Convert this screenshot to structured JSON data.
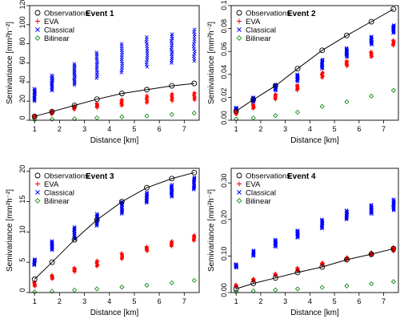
{
  "chart_data": [
    {
      "type": "scatter",
      "title": "Event 1",
      "xlabel": "Distance [km]",
      "ylabel": "Semivariance [mm²h⁻²]",
      "xlim": [
        0.8,
        7.6
      ],
      "ylim": [
        0,
        120
      ],
      "xticks": [
        "1",
        "2",
        "3",
        "4",
        "5",
        "6",
        "7"
      ],
      "yticks": [
        "0",
        "20",
        "40",
        "60",
        "80",
        "100",
        "120"
      ],
      "legend_position": "top-left",
      "x": [
        1.0,
        1.7,
        2.6,
        3.5,
        4.5,
        5.5,
        6.5,
        7.4
      ],
      "series": [
        {
          "name": "Observations",
          "marker": "circle-line",
          "color": "#000000",
          "values": [
            4,
            9,
            15.5,
            22,
            28,
            32,
            36,
            38.5
          ]
        },
        {
          "name": "EVA",
          "marker": "plus",
          "color": "#ff0000",
          "range_low": [
            2,
            6,
            11,
            13,
            15,
            18,
            20,
            21
          ],
          "range_high": [
            5,
            10,
            15,
            18,
            22,
            26,
            28,
            29
          ]
        },
        {
          "name": "Classical",
          "marker": "x",
          "color": "#0000ff",
          "range_low": [
            20,
            31,
            37,
            44,
            50,
            56,
            60,
            62
          ],
          "range_high": [
            33,
            47,
            59,
            71,
            80,
            87,
            90,
            95
          ]
        },
        {
          "name": "Bilinear",
          "marker": "diamond",
          "color": "#008000",
          "values": [
            0.5,
            1,
            1.5,
            2.5,
            3.5,
            4.5,
            6,
            7.5
          ]
        }
      ]
    },
    {
      "type": "scatter",
      "title": "Event 2",
      "xlabel": "Distance [km]",
      "ylabel": "Semivariance [mm²h⁻²]",
      "xlim": [
        0.8,
        7.6
      ],
      "ylim": [
        0,
        0.1
      ],
      "xticks": [
        "1",
        "2",
        "3",
        "4",
        "5",
        "6",
        "7"
      ],
      "yticks": [
        "0.00",
        "0.02",
        "0.04",
        "0.06",
        "0.08",
        "0.10"
      ],
      "legend_position": "top-left",
      "x": [
        1.0,
        1.7,
        2.6,
        3.5,
        4.5,
        5.5,
        6.5,
        7.4
      ],
      "series": [
        {
          "name": "Observations",
          "marker": "circle-line",
          "color": "#000000",
          "values": [
            0.008,
            0.018,
            0.03,
            0.045,
            0.061,
            0.074,
            0.086,
            0.097
          ]
        },
        {
          "name": "EVA",
          "marker": "plus",
          "color": "#ff0000",
          "range_low": [
            0.005,
            0.01,
            0.018,
            0.026,
            0.037,
            0.047,
            0.055,
            0.065
          ],
          "range_high": [
            0.008,
            0.014,
            0.023,
            0.031,
            0.042,
            0.052,
            0.06,
            0.07
          ]
        },
        {
          "name": "Classical",
          "marker": "x",
          "color": "#0000ff",
          "range_low": [
            0.008,
            0.016,
            0.026,
            0.034,
            0.045,
            0.055,
            0.066,
            0.076
          ],
          "range_high": [
            0.011,
            0.02,
            0.031,
            0.04,
            0.053,
            0.063,
            0.073,
            0.083
          ]
        },
        {
          "name": "Bilinear",
          "marker": "diamond",
          "color": "#008000",
          "values": [
            0.001,
            0.002,
            0.004,
            0.007,
            0.012,
            0.016,
            0.021,
            0.026
          ]
        }
      ]
    },
    {
      "type": "scatter",
      "title": "Event 3",
      "xlabel": "Distance [km]",
      "ylabel": "Semivariance [mm²h⁻²]",
      "xlim": [
        0.8,
        7.6
      ],
      "ylim": [
        0,
        20.5
      ],
      "xticks": [
        "1",
        "2",
        "3",
        "4",
        "5",
        "6",
        "7"
      ],
      "yticks": [
        "0",
        "5",
        "10",
        "15",
        "20"
      ],
      "legend_position": "top-left",
      "x": [
        1.0,
        1.7,
        2.6,
        3.5,
        4.5,
        5.5,
        6.5,
        7.4
      ],
      "series": [
        {
          "name": "Observations",
          "marker": "circle-line",
          "color": "#000000",
          "values": [
            2.2,
            5.0,
            8.7,
            12.0,
            15.0,
            17.3,
            18.8,
            19.8
          ]
        },
        {
          "name": "EVA",
          "marker": "plus",
          "color": "#ff0000",
          "range_low": [
            1.0,
            2.2,
            3.4,
            4.3,
            5.5,
            6.8,
            7.6,
            8.5
          ],
          "range_high": [
            1.8,
            2.9,
            4.1,
            5.3,
            6.5,
            7.6,
            8.5,
            9.5
          ]
        },
        {
          "name": "Classical",
          "marker": "x",
          "color": "#0000ff",
          "range_low": [
            4.5,
            7.0,
            8.8,
            11.0,
            13.0,
            14.8,
            15.8,
            17.0
          ],
          "range_high": [
            5.5,
            8.5,
            10.8,
            13.0,
            15.0,
            16.5,
            17.8,
            19.0
          ]
        },
        {
          "name": "Bilinear",
          "marker": "diamond",
          "color": "#008000",
          "values": [
            0.1,
            0.2,
            0.4,
            0.6,
            0.9,
            1.2,
            1.6,
            2.0
          ]
        }
      ]
    },
    {
      "type": "scatter",
      "title": "Event 4",
      "xlabel": "Distance [km]",
      "ylabel": "Semivariance [mm²h⁻²]",
      "xlim": [
        0.8,
        7.6
      ],
      "ylim": [
        0,
        0.34
      ],
      "xticks": [
        "1",
        "2",
        "3",
        "4",
        "5",
        "6",
        "7"
      ],
      "yticks": [
        "0.00",
        "0.10",
        "0.20",
        "0.30"
      ],
      "legend_position": "top-left",
      "x": [
        1.0,
        1.7,
        2.6,
        3.5,
        4.5,
        5.5,
        6.5,
        7.4
      ],
      "series": [
        {
          "name": "Observations",
          "marker": "circle-line",
          "color": "#000000",
          "values": [
            0.01,
            0.025,
            0.04,
            0.055,
            0.07,
            0.09,
            0.105,
            0.12
          ]
        },
        {
          "name": "EVA",
          "marker": "plus",
          "color": "#ff0000",
          "range_low": [
            0.015,
            0.03,
            0.045,
            0.058,
            0.074,
            0.088,
            0.101,
            0.112
          ],
          "range_high": [
            0.022,
            0.038,
            0.052,
            0.068,
            0.082,
            0.097,
            0.11,
            0.125
          ]
        },
        {
          "name": "Classical",
          "marker": "x",
          "color": "#0000ff",
          "range_low": [
            0.068,
            0.1,
            0.125,
            0.15,
            0.175,
            0.2,
            0.215,
            0.225
          ],
          "range_high": [
            0.078,
            0.115,
            0.145,
            0.17,
            0.2,
            0.225,
            0.24,
            0.255
          ]
        },
        {
          "name": "Bilinear",
          "marker": "diamond",
          "color": "#008000",
          "values": [
            0.002,
            0.004,
            0.007,
            0.01,
            0.014,
            0.018,
            0.024,
            0.03
          ]
        }
      ]
    }
  ]
}
